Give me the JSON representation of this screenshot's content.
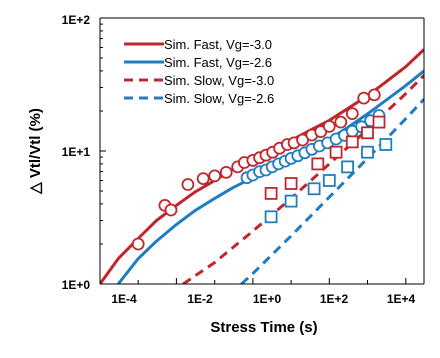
{
  "colors": {
    "red": "#c0272d",
    "blue": "#1f7dc1",
    "frame": "#c8c8c8"
  },
  "chart_data": {
    "type": "scatter",
    "xlabel": "Stress Time (s)",
    "ylabel": "△ Vtl/Vtl (%)",
    "x_scale": "log",
    "y_scale": "log",
    "xlim": [
      0.0001,
      30000
    ],
    "ylim": [
      1,
      100
    ],
    "x_ticks": [
      "1E-4",
      "1E-2",
      "1E+0",
      "1E+2",
      "1E+4"
    ],
    "y_ticks": [
      "1E+0",
      "1E+1",
      "1E+2"
    ],
    "grid": false,
    "legend_position": "top-left",
    "legend": [
      "Sim. Fast, Vg=-3.0",
      "Sim. Fast, Vg=-2.6",
      "Sim. Slow, Vg=-3.0",
      "Sim. Slow, Vg=-2.6"
    ],
    "series": [
      {
        "name": "Sim. Fast, Vg=-3.0",
        "kind": "line",
        "style": "solid",
        "color": "red",
        "x": [
          0.0001,
          0.0003,
          0.001,
          0.003,
          0.01,
          0.03,
          0.1,
          0.3,
          1,
          3,
          10,
          30,
          100,
          300,
          1000,
          3000,
          10000,
          30000
        ],
        "y": [
          1.0,
          1.55,
          2.2,
          3.0,
          3.9,
          4.9,
          6.0,
          7.3,
          8.7,
          10.2,
          12.0,
          14.2,
          17.0,
          20.8,
          26.0,
          33.0,
          43.0,
          58.0
        ]
      },
      {
        "name": "Sim. Fast, Vg=-2.6",
        "kind": "line",
        "style": "solid",
        "color": "blue",
        "x": [
          0.0003,
          0.001,
          0.003,
          0.01,
          0.03,
          0.1,
          0.3,
          1,
          3,
          10,
          30,
          100,
          300,
          1000,
          3000,
          10000,
          30000
        ],
        "y": [
          1.0,
          1.55,
          2.1,
          2.8,
          3.55,
          4.4,
          5.3,
          6.3,
          7.4,
          8.7,
          10.3,
          12.3,
          15.0,
          19.0,
          24.0,
          31.0,
          40.0
        ]
      },
      {
        "name": "Sim. Slow, Vg=-3.0",
        "kind": "line",
        "style": "dashed",
        "color": "red",
        "x": [
          0.015,
          0.1,
          1,
          10,
          100,
          1000,
          10000,
          30000
        ],
        "y": [
          1.0,
          1.45,
          2.5,
          4.4,
          8.0,
          14.5,
          27.0,
          37.0
        ]
      },
      {
        "name": "Sim. Slow, Vg=-2.6",
        "kind": "line",
        "style": "dashed",
        "color": "blue",
        "x": [
          0.5,
          1,
          10,
          100,
          1000,
          10000,
          30000
        ],
        "y": [
          1.0,
          1.2,
          2.3,
          4.5,
          8.8,
          17.5,
          24.5
        ]
      },
      {
        "kind": "markers",
        "marker": "circle",
        "color": "red",
        "x": [
          0.001,
          0.005,
          0.0072,
          0.02,
          0.05,
          0.1,
          0.2,
          0.4,
          0.6,
          1.0,
          1.5,
          2.2,
          3.3,
          5,
          8,
          12,
          20,
          35,
          60,
          100,
          200,
          400,
          800,
          1500
        ],
        "y": [
          2.0,
          3.9,
          3.6,
          5.6,
          6.2,
          6.5,
          6.9,
          7.6,
          8.2,
          8.5,
          8.9,
          9.3,
          9.8,
          10.5,
          11.2,
          11.5,
          12.1,
          13.2,
          14.0,
          15.3,
          16.5,
          19.1,
          25.0,
          26.4
        ]
      },
      {
        "kind": "markers",
        "marker": "circle",
        "color": "blue",
        "x": [
          0.7,
          1.0,
          1.5,
          2.2,
          3.2,
          4.7,
          7,
          10,
          15,
          23,
          35,
          55,
          90,
          150,
          250,
          400,
          700,
          1200,
          2000
        ],
        "y": [
          6.3,
          6.6,
          7.0,
          7.2,
          7.6,
          8.0,
          8.4,
          8.8,
          9.2,
          9.7,
          10.3,
          10.9,
          11.5,
          12.3,
          13.1,
          14.1,
          15.2,
          16.9,
          18.5
        ]
      },
      {
        "kind": "markers",
        "marker": "square",
        "color": "red",
        "x": [
          3,
          10,
          50,
          150,
          400,
          1000,
          2000
        ],
        "y": [
          4.8,
          5.7,
          8.0,
          9.8,
          11.7,
          13.7,
          16.5
        ]
      },
      {
        "kind": "markers",
        "marker": "square",
        "color": "blue",
        "x": [
          3,
          10,
          40,
          100,
          300,
          1000,
          3000
        ],
        "y": [
          3.2,
          4.2,
          5.2,
          6.0,
          7.6,
          9.8,
          11.2
        ]
      }
    ]
  }
}
